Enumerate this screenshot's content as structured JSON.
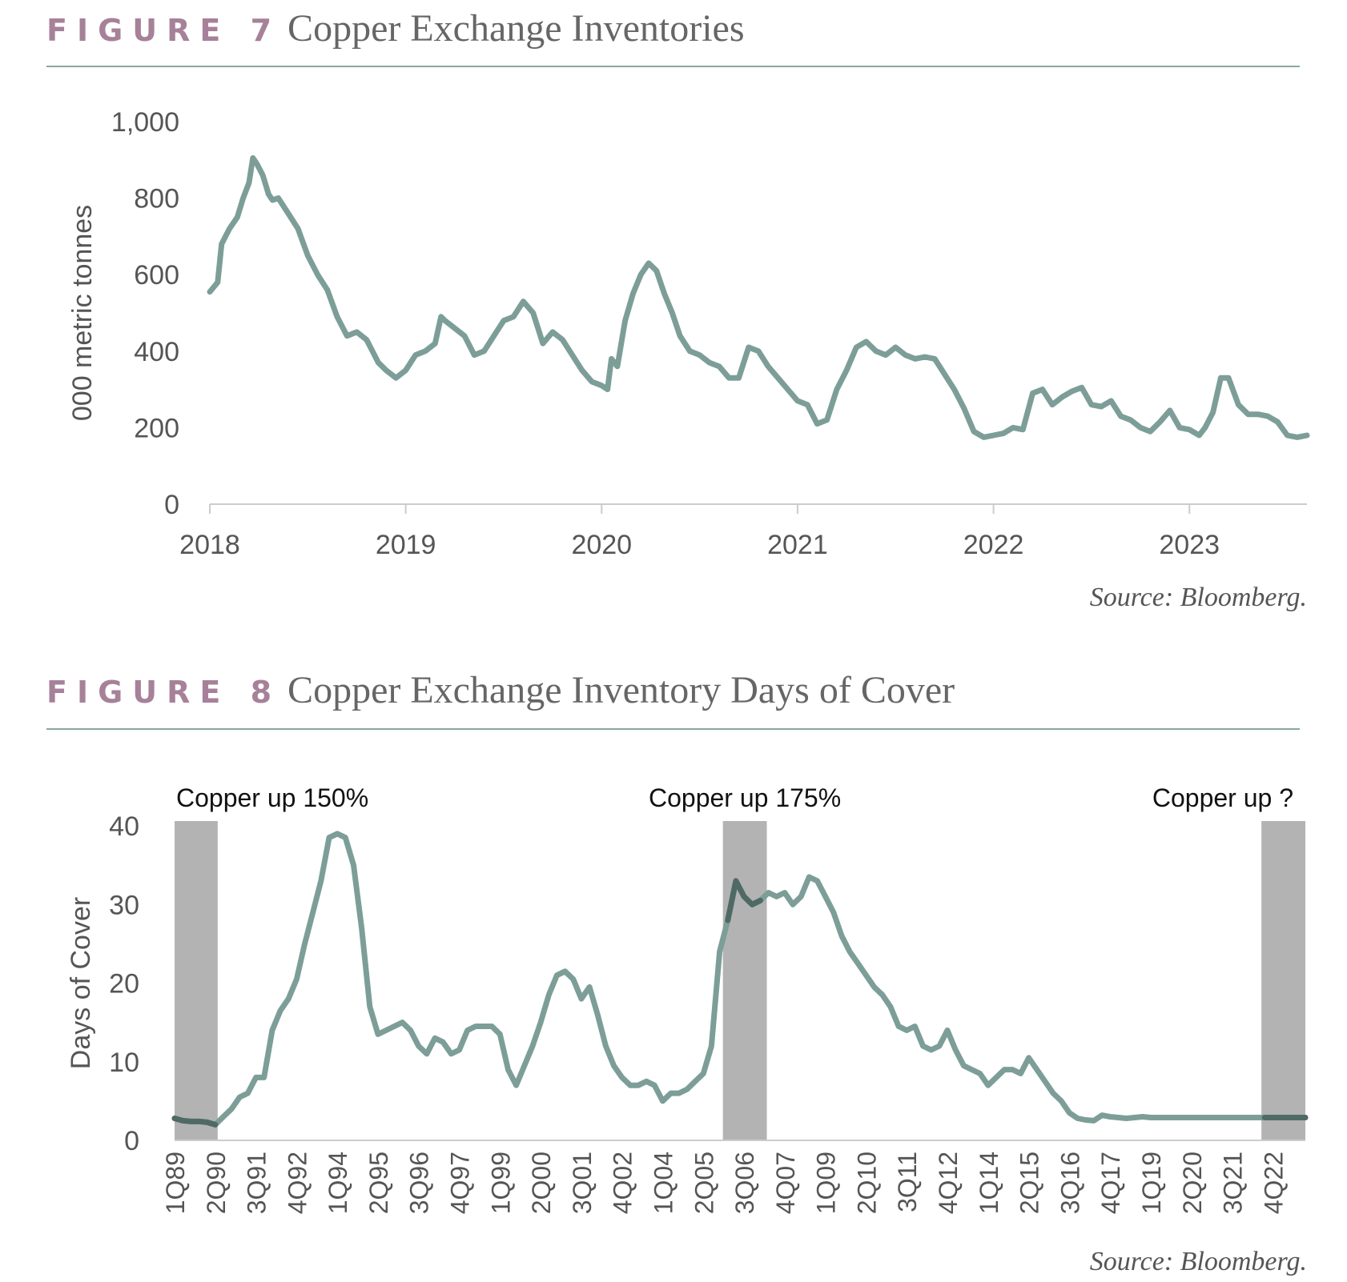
{
  "figures": [
    {
      "label": "FIGURE 7",
      "title": "Copper Exchange Inventories",
      "source": "Source: Bloomberg."
    },
    {
      "label": "FIGURE 8",
      "title": "Copper Exchange Inventory Days of Cover",
      "source": "Source: Bloomberg."
    }
  ],
  "colors": {
    "line": "#7d9e98",
    "line_dark": "#4f6a65",
    "shade": "#b3b3b3",
    "label": "#a68199",
    "axis": "#cccccc"
  },
  "chart_data": [
    {
      "type": "line",
      "title": "Copper Exchange Inventories",
      "ylabel": "000 metric tonnes",
      "xlabel": "",
      "ylim": [
        0,
        1000
      ],
      "xlim": [
        2018.0,
        2023.6
      ],
      "yticks": [
        "0",
        "200",
        "400",
        "600",
        "800",
        "1,000"
      ],
      "ytick_values": [
        0,
        200,
        400,
        600,
        800,
        1000
      ],
      "xticks": [
        "2018",
        "2019",
        "2020",
        "2021",
        "2022",
        "2023"
      ],
      "xtick_values": [
        2018,
        2019,
        2020,
        2021,
        2022,
        2023
      ],
      "grid": false,
      "series": [
        {
          "x": [
            2018.0,
            2018.04,
            2018.06,
            2018.1,
            2018.14,
            2018.17,
            2018.2,
            2018.22,
            2018.24,
            2018.27,
            2018.3,
            2018.32,
            2018.35,
            2018.4,
            2018.45,
            2018.5,
            2018.55,
            2018.6,
            2018.65,
            2018.7,
            2018.75,
            2018.8,
            2018.83,
            2018.86,
            2018.9,
            2018.95,
            2019.0,
            2019.05,
            2019.1,
            2019.15,
            2019.18,
            2019.2,
            2019.25,
            2019.3,
            2019.35,
            2019.4,
            2019.45,
            2019.5,
            2019.55,
            2019.6,
            2019.65,
            2019.7,
            2019.75,
            2019.8,
            2019.85,
            2019.9,
            2019.95,
            2020.0,
            2020.03,
            2020.05,
            2020.08,
            2020.12,
            2020.16,
            2020.2,
            2020.24,
            2020.28,
            2020.32,
            2020.36,
            2020.4,
            2020.45,
            2020.5,
            2020.55,
            2020.6,
            2020.65,
            2020.7,
            2020.75,
            2020.8,
            2020.85,
            2020.9,
            2020.95,
            2021.0,
            2021.05,
            2021.1,
            2021.15,
            2021.2,
            2021.25,
            2021.3,
            2021.35,
            2021.4,
            2021.45,
            2021.5,
            2021.55,
            2021.6,
            2021.65,
            2021.7,
            2021.75,
            2021.8,
            2021.85,
            2021.9,
            2021.95,
            2022.0,
            2022.05,
            2022.1,
            2022.15,
            2022.2,
            2022.25,
            2022.3,
            2022.35,
            2022.4,
            2022.45,
            2022.5,
            2022.55,
            2022.6,
            2022.65,
            2022.7,
            2022.75,
            2022.8,
            2022.85,
            2022.9,
            2022.95,
            2023.0,
            2023.05,
            2023.08,
            2023.12,
            2023.16,
            2023.2,
            2023.25,
            2023.3,
            2023.35,
            2023.4,
            2023.45,
            2023.5,
            2023.55,
            2023.6
          ],
          "values": [
            555,
            580,
            680,
            720,
            750,
            800,
            840,
            905,
            890,
            860,
            810,
            795,
            800,
            760,
            720,
            650,
            600,
            560,
            490,
            440,
            450,
            430,
            400,
            370,
            350,
            330,
            350,
            390,
            400,
            420,
            490,
            480,
            460,
            440,
            390,
            400,
            440,
            480,
            490,
            530,
            500,
            420,
            450,
            430,
            390,
            350,
            320,
            310,
            300,
            380,
            360,
            480,
            550,
            600,
            630,
            610,
            550,
            500,
            440,
            400,
            390,
            370,
            360,
            330,
            330,
            410,
            400,
            360,
            330,
            300,
            270,
            260,
            210,
            220,
            300,
            350,
            410,
            425,
            400,
            390,
            410,
            390,
            380,
            385,
            380,
            340,
            300,
            250,
            190,
            175,
            180,
            185,
            200,
            195,
            290,
            300,
            260,
            280,
            295,
            305,
            260,
            255,
            270,
            230,
            220,
            200,
            190,
            215,
            245,
            200,
            195,
            180,
            200,
            240,
            330,
            330,
            260,
            235,
            235,
            230,
            215,
            180,
            175,
            180
          ]
        }
      ]
    },
    {
      "type": "line",
      "title": "Copper Exchange Inventory Days of Cover",
      "ylabel": "Days of Cover",
      "xlabel": "",
      "ylim": [
        0,
        40
      ],
      "yticks": [
        "0",
        "10",
        "20",
        "30",
        "40"
      ],
      "ytick_values": [
        0,
        10,
        20,
        30,
        40
      ],
      "xticks": [
        "1Q89",
        "2Q90",
        "3Q91",
        "4Q92",
        "1Q94",
        "2Q95",
        "3Q96",
        "4Q97",
        "1Q99",
        "2Q00",
        "3Q01",
        "4Q02",
        "1Q04",
        "2Q05",
        "3Q06",
        "4Q07",
        "1Q09",
        "2Q10",
        "3Q11",
        "4Q12",
        "1Q14",
        "2Q15",
        "3Q16",
        "4Q17",
        "1Q19",
        "2Q20",
        "3Q21",
        "4Q22"
      ],
      "xtick_values": [
        0,
        5,
        10,
        15,
        20,
        25,
        30,
        35,
        40,
        45,
        50,
        55,
        60,
        65,
        70,
        75,
        80,
        85,
        90,
        95,
        100,
        105,
        110,
        115,
        120,
        125,
        130,
        135
      ],
      "xlim": [
        0,
        139
      ],
      "grid": false,
      "shaded_regions": [
        {
          "start": 0,
          "end": 5.3,
          "label": "Copper up 150%"
        },
        {
          "start": 67.4,
          "end": 72.8,
          "label": "Copper up 175%"
        },
        {
          "start": 133.6,
          "end": 139,
          "label": "Copper up ?"
        }
      ],
      "series": [
        {
          "x": [
            0,
            1,
            2,
            3,
            4,
            5,
            6,
            7,
            8,
            9,
            10,
            11,
            12,
            13,
            14,
            15,
            16,
            17,
            18,
            19,
            20,
            21,
            22,
            23,
            24,
            25,
            26,
            27,
            28,
            29,
            30,
            31,
            32,
            33,
            34,
            35,
            36,
            37,
            38,
            39,
            40,
            41,
            42,
            43,
            44,
            45,
            46,
            47,
            48,
            49,
            50,
            51,
            52,
            53,
            54,
            55,
            56,
            57,
            58,
            59,
            60,
            61,
            62,
            63,
            64,
            65,
            66,
            67,
            68,
            69,
            70,
            71,
            72,
            73,
            74,
            75,
            76,
            77,
            78,
            79,
            80,
            81,
            82,
            83,
            84,
            85,
            86,
            87,
            88,
            89,
            90,
            91,
            92,
            93,
            94,
            95,
            96,
            97,
            98,
            99,
            100,
            101,
            102,
            103,
            104,
            105,
            106,
            107,
            108,
            109,
            110,
            111,
            112,
            113,
            114,
            115,
            116,
            117,
            118,
            119,
            120,
            121,
            122,
            123,
            124,
            125,
            126,
            127,
            128,
            129,
            130,
            131,
            132,
            133,
            134,
            135,
            136,
            137,
            138,
            139
          ],
          "values": [
            2.8,
            2.5,
            2.4,
            2.4,
            2.3,
            2.0,
            3.0,
            4.0,
            5.5,
            6.0,
            8.0,
            8.0,
            14.0,
            16.5,
            18.0,
            20.5,
            25.0,
            29.0,
            33.0,
            38.5,
            39.0,
            38.5,
            35.0,
            27.0,
            17.0,
            13.5,
            14.0,
            14.5,
            15.0,
            14.0,
            12.0,
            11.0,
            13.0,
            12.5,
            11.0,
            11.5,
            14.0,
            14.5,
            14.5,
            14.5,
            13.5,
            9.0,
            7.0,
            9.5,
            12.0,
            15.0,
            18.5,
            21.0,
            21.5,
            20.5,
            18.0,
            19.5,
            16.0,
            12.0,
            9.5,
            8.0,
            7.0,
            7.0,
            7.5,
            7.0,
            5.0,
            6.0,
            6.0,
            6.5,
            7.5,
            8.5,
            12.0,
            24.0,
            28.0,
            33.0,
            31.0,
            30.0,
            30.5,
            31.5,
            31.0,
            31.5,
            30.0,
            31.0,
            33.5,
            33.0,
            31.0,
            29.0,
            26.0,
            24.0,
            22.5,
            21.0,
            19.5,
            18.5,
            17.0,
            14.5,
            14.0,
            14.5,
            12.0,
            11.5,
            12.0,
            14.0,
            11.5,
            9.5,
            9.0,
            8.5,
            7.0,
            8.0,
            9.0,
            9.0,
            8.5,
            10.5,
            9.0,
            7.5,
            6.0,
            5.0,
            3.5,
            2.8,
            2.6,
            2.5,
            3.2,
            3.0,
            2.9,
            2.8,
            2.9,
            3.0,
            2.9,
            2.9,
            2.9,
            2.9,
            2.9,
            2.9,
            2.9,
            2.9,
            2.9,
            2.9,
            2.9,
            2.9,
            2.9,
            2.9,
            2.9,
            2.9,
            2.9,
            2.9,
            2.9,
            2.9
          ]
        }
      ]
    }
  ]
}
